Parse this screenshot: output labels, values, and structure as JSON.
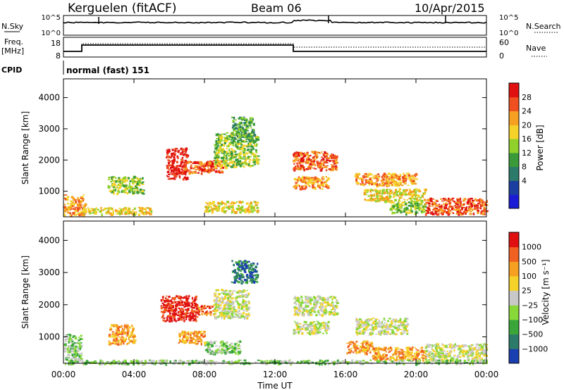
{
  "header": {
    "station": "Kerguelen (fitACF)",
    "beam": "Beam 06",
    "date": "10/Apr/2015"
  },
  "top_panels": {
    "nsky": {
      "label": "N.Sky",
      "right_label": "N.Search",
      "left_ticks": [
        "10^5",
        "10^0"
      ],
      "right_ticks": [
        "10^5",
        "10^0"
      ]
    },
    "freq": {
      "label_line1": "Freq.",
      "label_line2": "[MHz]",
      "left_ticks": [
        "18",
        "8"
      ],
      "right_ticks": [
        "60",
        "0"
      ],
      "right_label": "Nave"
    },
    "cpid": {
      "label": "CPID",
      "text": "normal (fast) 151"
    }
  },
  "chart_data": [
    {
      "type": "heatmap",
      "name": "power-panel",
      "ylabel": "Slant Range [km]",
      "xlabel": "",
      "xlim_hours": [
        0,
        24
      ],
      "ylim": [
        180,
        4600
      ],
      "y_ticks": [
        "4000",
        "3000",
        "2000",
        "1000"
      ],
      "y_tick_values": [
        4000,
        3000,
        2000,
        1000
      ],
      "colorbar": {
        "label": "Power [dB]",
        "ticks": [
          "28",
          "24",
          "20",
          "16",
          "12",
          "8",
          "4"
        ],
        "colors": [
          "#1b1bd6",
          "#1a3fa0",
          "#2c7a6a",
          "#3a9a3a",
          "#8fd12a",
          "#f5d22a",
          "#f5a020",
          "#f05020",
          "#e01010"
        ]
      },
      "patches": [
        {
          "t": [
            0,
            1.2
          ],
          "r": [
            250,
            900
          ],
          "level": 6
        },
        {
          "t": [
            1,
            5
          ],
          "r": [
            280,
            500
          ],
          "level": 5
        },
        {
          "t": [
            2.5,
            4.5
          ],
          "r": [
            950,
            1500
          ],
          "level": 4
        },
        {
          "t": [
            5.8,
            7
          ],
          "r": [
            1400,
            2400
          ],
          "level": 8
        },
        {
          "t": [
            6.8,
            9
          ],
          "r": [
            1600,
            2000
          ],
          "level": 7
        },
        {
          "t": [
            8.5,
            11
          ],
          "r": [
            1800,
            2900
          ],
          "level": 4
        },
        {
          "t": [
            9.5,
            10.8
          ],
          "r": [
            2600,
            3400
          ],
          "level": 3
        },
        {
          "t": [
            8,
            11
          ],
          "r": [
            350,
            700
          ],
          "level": 5
        },
        {
          "t": [
            13,
            15.5
          ],
          "r": [
            1700,
            2300
          ],
          "level": 7
        },
        {
          "t": [
            13,
            15
          ],
          "r": [
            1100,
            1500
          ],
          "level": 6
        },
        {
          "t": [
            16.5,
            20
          ],
          "r": [
            1200,
            1600
          ],
          "level": 6
        },
        {
          "t": [
            17,
            20.5
          ],
          "r": [
            700,
            1100
          ],
          "level": 5
        },
        {
          "t": [
            18.5,
            20.5
          ],
          "r": [
            300,
            700
          ],
          "level": 4
        },
        {
          "t": [
            20.5,
            24
          ],
          "r": [
            280,
            800
          ],
          "level": 7
        }
      ]
    },
    {
      "type": "heatmap",
      "name": "velocity-panel",
      "ylabel": "Slant Range [km]",
      "xlabel": "Time UT",
      "xlim_hours": [
        0,
        24
      ],
      "ylim": [
        180,
        4600
      ],
      "x_ticks": [
        "00:00",
        "04:00",
        "08:00",
        "12:00",
        "16:00",
        "20:00",
        "00:00"
      ],
      "x_tick_hours": [
        0,
        4,
        8,
        12,
        16,
        20,
        24
      ],
      "y_ticks": [
        "4000",
        "3000",
        "2000",
        "1000"
      ],
      "y_tick_values": [
        4000,
        3000,
        2000,
        1000
      ],
      "colorbar": {
        "label": "Velocity [m s⁻¹]",
        "ticks": [
          "1000",
          "500",
          "100",
          "25",
          "−25",
          "−100",
          "−500",
          "−1000"
        ],
        "colors": [
          "#1a3fb0",
          "#2c7a6a",
          "#3aa63a",
          "#88d83a",
          "#c8c8c8",
          "#f5d22a",
          "#f5a020",
          "#f06020",
          "#e01010"
        ]
      },
      "patches": [
        {
          "t": [
            0,
            1
          ],
          "r": [
            300,
            1100
          ],
          "level": 3
        },
        {
          "t": [
            2.5,
            4
          ],
          "r": [
            800,
            1400
          ],
          "level": 6
        },
        {
          "t": [
            5.5,
            7.5
          ],
          "r": [
            1500,
            2300
          ],
          "level": 8
        },
        {
          "t": [
            7.5,
            8.5
          ],
          "r": [
            1700,
            2000
          ],
          "level": 7
        },
        {
          "t": [
            8.5,
            10.5
          ],
          "r": [
            1600,
            2500
          ],
          "level": 4
        },
        {
          "t": [
            9.5,
            11
          ],
          "r": [
            2700,
            3400
          ],
          "level": 1
        },
        {
          "t": [
            8,
            10
          ],
          "r": [
            500,
            900
          ],
          "level": 3
        },
        {
          "t": [
            6.5,
            8
          ],
          "r": [
            800,
            1200
          ],
          "level": 6
        },
        {
          "t": [
            13,
            15.5
          ],
          "r": [
            1700,
            2300
          ],
          "level": 4
        },
        {
          "t": [
            13,
            15
          ],
          "r": [
            1100,
            1500
          ],
          "level": 4
        },
        {
          "t": [
            16.5,
            19.5
          ],
          "r": [
            1100,
            1600
          ],
          "level": 4
        },
        {
          "t": [
            16,
            17.5
          ],
          "r": [
            500,
            900
          ],
          "level": 6
        },
        {
          "t": [
            17.5,
            20.5
          ],
          "r": [
            300,
            700
          ],
          "level": 6
        },
        {
          "t": [
            20.5,
            24
          ],
          "r": [
            280,
            800
          ],
          "level": 4
        },
        {
          "t": [
            0,
            24
          ],
          "r": [
            180,
            300
          ],
          "level": 3
        }
      ]
    }
  ]
}
